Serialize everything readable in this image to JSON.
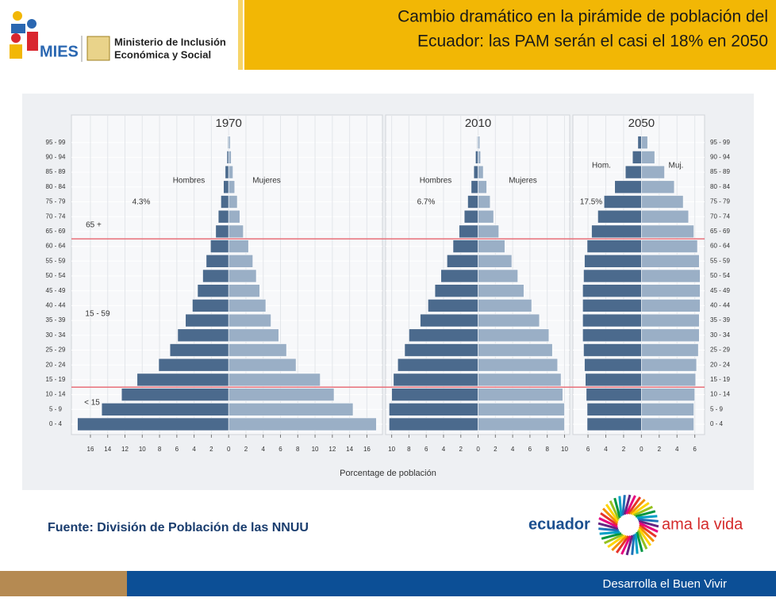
{
  "header": {
    "title_lines": [
      "Cambio dramático en la pirámide de población del",
      "Ecuador: las PAM serán el casi el 18% en 2050"
    ],
    "logo_short": "MIES",
    "logo_lines": [
      "Ministerio de Inclusión",
      "Económica y Social"
    ]
  },
  "source": "Fuente: División de Población de las NNUU",
  "brand": {
    "left": "ecuador",
    "right": "ama la vida"
  },
  "footer": "Desarrolla el Buen Vivir",
  "chart_data": [
    {
      "type": "pyramid",
      "title": "1970",
      "categories": [
        "0 - 4",
        "5 - 9",
        "10 - 14",
        "15 - 19",
        "20 - 24",
        "25 - 29",
        "30 - 34",
        "35 - 39",
        "40 - 44",
        "45 - 49",
        "50 - 54",
        "55 - 59",
        "60 - 64",
        "65 - 69",
        "70 - 74",
        "75 - 79",
        "80 - 84",
        "85 - 89",
        "90 - 94",
        "95 - 99"
      ],
      "series": [
        {
          "name": "Hombres",
          "color": "#4b6a8d",
          "values": [
            -17.5,
            -14.7,
            -12.4,
            -10.6,
            -8.1,
            -6.8,
            -5.9,
            -5.0,
            -4.2,
            -3.6,
            -3.0,
            -2.6,
            -2.1,
            -1.5,
            -1.2,
            -0.9,
            -0.6,
            -0.4,
            -0.2,
            -0.1
          ]
        },
        {
          "name": "Mujeres",
          "color": "#9aafc6",
          "values": [
            17.1,
            14.4,
            12.2,
            10.6,
            7.8,
            6.7,
            5.8,
            4.9,
            4.3,
            3.6,
            3.2,
            2.8,
            2.3,
            1.7,
            1.3,
            1.0,
            0.7,
            0.5,
            0.3,
            0.2
          ]
        }
      ],
      "annotations": [
        "4.3%",
        "65 +",
        "15 - 59",
        "< 15"
      ],
      "xlim": [
        -18.2,
        17.8
      ],
      "xticks": [
        {
          "value": -16,
          "label": "16"
        },
        {
          "value": -14,
          "label": "14"
        },
        {
          "value": -12,
          "label": "12"
        },
        {
          "value": -10,
          "label": "10"
        },
        {
          "value": -8,
          "label": "8"
        },
        {
          "value": -6,
          "label": "6"
        },
        {
          "value": -4,
          "label": "4"
        },
        {
          "value": -2,
          "label": "2"
        },
        0,
        2,
        4,
        6,
        8,
        10,
        12,
        14,
        16
      ],
      "grid": true
    },
    {
      "type": "pyramid",
      "title": "2010",
      "xlabel": "Porcentage de población",
      "series": [
        {
          "name": "Hombres",
          "color": "#4b6a8d",
          "values": [
            -10.3,
            -10.3,
            -10.0,
            -9.8,
            -9.3,
            -8.5,
            -8.0,
            -6.7,
            -5.8,
            -5.0,
            -4.3,
            -3.6,
            -2.9,
            -2.2,
            -1.6,
            -1.2,
            -0.8,
            -0.5,
            -0.3,
            -0.1
          ]
        },
        {
          "name": "Mujeres",
          "color": "#9aafc6",
          "values": [
            10.0,
            10.0,
            9.8,
            9.6,
            9.2,
            8.6,
            8.2,
            7.1,
            6.2,
            5.3,
            4.6,
            3.9,
            3.1,
            2.4,
            1.8,
            1.4,
            1.0,
            0.6,
            0.3,
            0.2
          ]
        }
      ],
      "annotations": [
        "6.7%"
      ],
      "xlim": [
        -10.7,
        10.6
      ],
      "xticks": [
        {
          "value": -10,
          "label": "10"
        },
        {
          "value": -8,
          "label": "8"
        },
        {
          "value": -6,
          "label": "6"
        },
        {
          "value": -4,
          "label": "4"
        },
        {
          "value": -2,
          "label": "2"
        },
        0,
        2,
        4,
        6,
        8,
        10
      ],
      "grid": true
    },
    {
      "type": "pyramid",
      "title": "2050",
      "categories": [
        "0 - 4",
        "5 - 9",
        "10 - 14",
        "15 - 19",
        "20 - 24",
        "25 - 29",
        "30 - 34",
        "35 - 39",
        "40 - 44",
        "45 - 49",
        "50 - 54",
        "55 - 59",
        "60 - 64",
        "65 - 69",
        "70 - 74",
        "75 - 79",
        "80 - 84",
        "85 - 89",
        "90 - 94",
        "95 - 99"
      ],
      "series": [
        {
          "name": "Hom.",
          "color": "#4b6a8d",
          "values": [
            -6.1,
            -6.1,
            -6.2,
            -6.3,
            -6.4,
            -6.5,
            -6.6,
            -6.6,
            -6.6,
            -6.6,
            -6.5,
            -6.4,
            -6.1,
            -5.6,
            -4.9,
            -4.2,
            -3.0,
            -1.8,
            -1.0,
            -0.4
          ]
        },
        {
          "name": "Muj.",
          "color": "#9aafc6",
          "values": [
            5.9,
            5.9,
            6.0,
            6.1,
            6.2,
            6.4,
            6.5,
            6.5,
            6.6,
            6.6,
            6.6,
            6.5,
            6.3,
            5.9,
            5.3,
            4.7,
            3.7,
            2.6,
            1.5,
            0.7
          ]
        }
      ],
      "annotations": [
        "17.5%"
      ],
      "xlim": [
        -7.7,
        7.1
      ],
      "xticks": [
        {
          "value": -6,
          "label": "6"
        },
        {
          "value": -4,
          "label": "4"
        },
        {
          "value": -2,
          "label": "2"
        },
        0,
        2,
        4,
        6
      ],
      "grid": true
    }
  ]
}
